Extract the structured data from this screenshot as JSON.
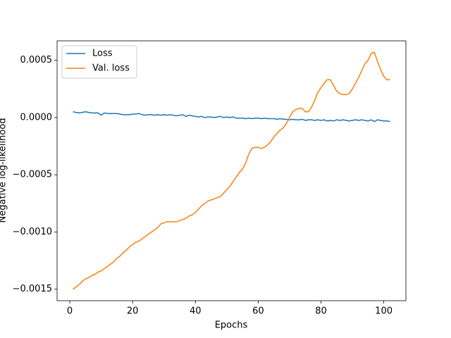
{
  "chart_data": {
    "type": "line",
    "xlabel": "Epochs",
    "ylabel": "Negative log-likelihood",
    "x": [
      1,
      2,
      3,
      4,
      5,
      6,
      7,
      8,
      9,
      10,
      11,
      12,
      13,
      14,
      15,
      16,
      17,
      18,
      19,
      20,
      21,
      22,
      23,
      24,
      25,
      26,
      27,
      28,
      29,
      30,
      31,
      32,
      33,
      34,
      35,
      36,
      37,
      38,
      39,
      40,
      41,
      42,
      43,
      44,
      45,
      46,
      47,
      48,
      49,
      50,
      51,
      52,
      53,
      54,
      55,
      56,
      57,
      58,
      59,
      60,
      61,
      62,
      63,
      64,
      65,
      66,
      67,
      68,
      69,
      70,
      71,
      72,
      73,
      74,
      75,
      76,
      77,
      78,
      79,
      80,
      81,
      82,
      83,
      84,
      85,
      86,
      87,
      88,
      89,
      90,
      91,
      92,
      93,
      94,
      95,
      96,
      97,
      98,
      99,
      100,
      101,
      102
    ],
    "series": [
      {
        "name": "Loss",
        "color": "#1f77b4",
        "values": [
          5e-05,
          4.5e-05,
          4e-05,
          4.5e-05,
          5e-05,
          4.5e-05,
          4e-05,
          4e-05,
          4e-05,
          2e-05,
          4e-05,
          3.5e-05,
          3.5e-05,
          3.5e-05,
          3.5e-05,
          3e-05,
          2.5e-05,
          2.5e-05,
          2.5e-05,
          3e-05,
          3e-05,
          3.5e-05,
          2.5e-05,
          2e-05,
          2.5e-05,
          2.5e-05,
          2e-05,
          2.5e-05,
          2e-05,
          2.5e-05,
          2e-05,
          2.5e-05,
          2e-05,
          1.5e-05,
          2e-05,
          2.5e-05,
          1e-05,
          2e-05,
          1.5e-05,
          1e-05,
          5e-06,
          1e-05,
          0.0,
          5e-06,
          5e-06,
          0.0,
          5e-06,
          1e-05,
          0.0,
          5e-06,
          0.0,
          5e-06,
          -5e-06,
          -5e-06,
          -5e-06,
          -1e-05,
          -5e-06,
          -1e-05,
          -5e-06,
          -5e-06,
          -1e-05,
          -5e-06,
          -1e-05,
          -1e-05,
          -1e-05,
          -1.5e-05,
          -1e-05,
          -1.5e-05,
          -1.5e-05,
          -2e-05,
          -1.5e-05,
          -2e-05,
          -2e-05,
          -1.5e-05,
          -2.5e-05,
          -2e-05,
          -2e-05,
          -2.5e-05,
          -2e-05,
          -2.5e-05,
          -2e-05,
          -3e-05,
          -2.5e-05,
          -3e-05,
          -2e-05,
          -2.5e-05,
          -2e-05,
          -2.5e-05,
          -3e-05,
          -2.5e-05,
          -2e-05,
          -2.5e-05,
          -2e-05,
          -2.5e-05,
          -3e-05,
          -2e-05,
          -3.5e-05,
          -2e-05,
          -2.5e-05,
          -3e-05,
          -3e-05,
          -3.5e-05
        ]
      },
      {
        "name": "Val. loss",
        "color": "#ff7f0e",
        "values": [
          -0.0015,
          -0.00148,
          -0.00146,
          -0.00143,
          -0.00141,
          -0.0014,
          -0.00138,
          -0.00137,
          -0.00135,
          -0.00134,
          -0.00132,
          -0.0013,
          -0.00128,
          -0.00126,
          -0.00123,
          -0.00121,
          -0.00118,
          -0.00116,
          -0.00113,
          -0.00111,
          -0.00109,
          -0.00108,
          -0.00106,
          -0.00104,
          -0.00102,
          -0.001,
          -0.00098,
          -0.00096,
          -0.00093,
          -0.00092,
          -0.00091,
          -0.00091,
          -0.00091,
          -0.00091,
          -0.0009,
          -0.00089,
          -0.00088,
          -0.00086,
          -0.00085,
          -0.00083,
          -0.0008,
          -0.00077,
          -0.00075,
          -0.00073,
          -0.00072,
          -0.00071,
          -0.0007,
          -0.00069,
          -0.00066,
          -0.00063,
          -0.0006,
          -0.00056,
          -0.00052,
          -0.00048,
          -0.00045,
          -0.0004,
          -0.00032,
          -0.00027,
          -0.00026,
          -0.00026,
          -0.00027,
          -0.00026,
          -0.00024,
          -0.00021,
          -0.00017,
          -0.00014,
          -0.00011,
          -9e-05,
          -5e-05,
          0.0,
          5e-05,
          7e-05,
          8e-05,
          8e-05,
          5e-05,
          5e-05,
          9e-05,
          0.00015,
          0.00022,
          0.00026,
          0.0003,
          0.00033,
          0.00033,
          0.00028,
          0.00023,
          0.00021,
          0.0002,
          0.0002,
          0.00021,
          0.00025,
          0.0003,
          0.00035,
          0.00041,
          0.00047,
          0.0005,
          0.00056,
          0.00057,
          0.00049,
          0.00042,
          0.00036,
          0.00033,
          0.00033
        ]
      }
    ],
    "xlim": [
      -4.05,
      107.05
    ],
    "xticks": [
      0,
      20,
      40,
      60,
      80,
      100
    ],
    "ylim": [
      -0.0016,
      0.00067
    ],
    "yticks": [
      {
        "value": -0.0015,
        "label": "−0.0015"
      },
      {
        "value": -0.001,
        "label": "−0.0010"
      },
      {
        "value": -0.0005,
        "label": "−0.0005"
      },
      {
        "value": 0,
        "label": "0.0000"
      },
      0.0005
    ],
    "legend": "upper left"
  }
}
